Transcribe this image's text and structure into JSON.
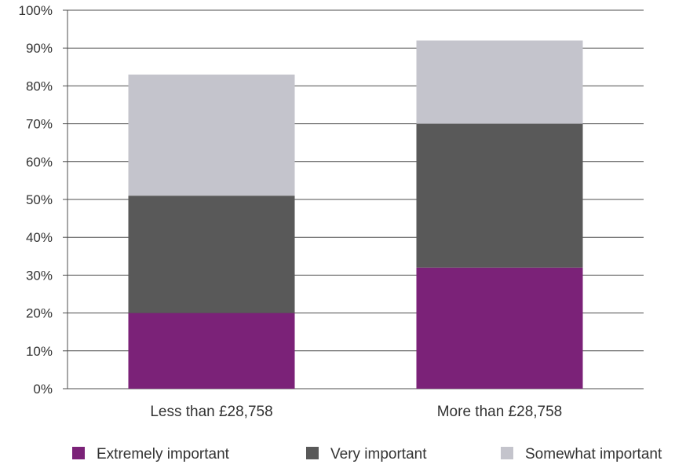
{
  "chart_data": {
    "type": "bar",
    "stacked": true,
    "categories": [
      "Less than £28,758",
      "More than £28,758"
    ],
    "series": [
      {
        "name": "Extremely important",
        "values": [
          20,
          32
        ],
        "color": "#7b2278"
      },
      {
        "name": "Very important",
        "values": [
          31,
          38
        ],
        "color": "#595959"
      },
      {
        "name": "Somewhat important",
        "values": [
          32,
          22
        ],
        "color": "#c4c4cc"
      }
    ],
    "yticks": [
      "0%",
      "10%",
      "20%",
      "30%",
      "40%",
      "50%",
      "60%",
      "70%",
      "80%",
      "90%",
      "100%"
    ],
    "ylim": [
      0,
      100
    ],
    "grid": true,
    "legend_position": "bottom",
    "title": "",
    "xlabel": "",
    "ylabel": ""
  }
}
